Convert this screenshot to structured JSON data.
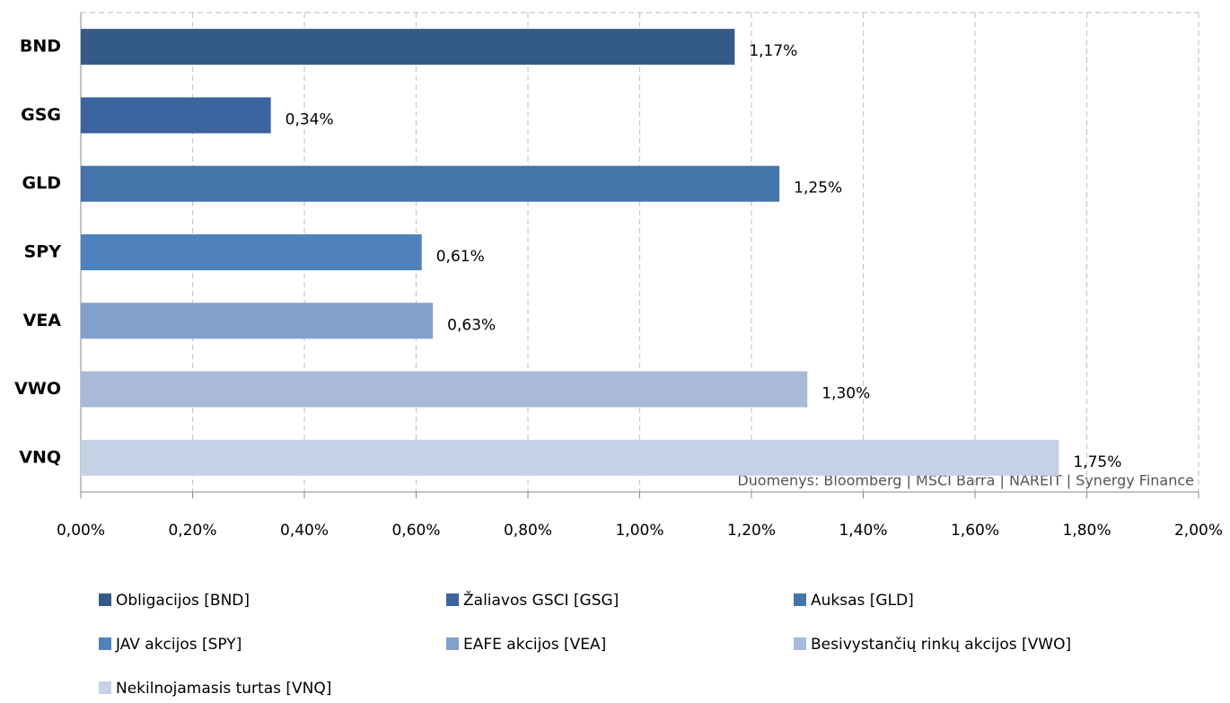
{
  "chart_data": {
    "type": "bar",
    "orientation": "horizontal",
    "categories": [
      "BND",
      "GSG",
      "GLD",
      "SPY",
      "VEA",
      "VWO",
      "VNQ"
    ],
    "values": [
      1.17,
      0.34,
      1.25,
      0.61,
      0.63,
      1.3,
      1.75
    ],
    "value_labels": [
      "1,17%",
      "0,34%",
      "1,25%",
      "0,61%",
      "0,63%",
      "1,30%",
      "1,75%"
    ],
    "colors": [
      "#345b88",
      "#3b639e",
      "#4574ab",
      "#4f81bd",
      "#82a0cc",
      "#a9bad8",
      "#c6d1e5"
    ],
    "legend": [
      "Obligacijos [BND]",
      "Žaliavos GSCI [GSG]",
      "Auksas [GLD]",
      "JAV akcijos [SPY]",
      "EAFE akcijos [VEA]",
      "Besivystančių rinkų akcijos [VWO]",
      "Nekilnojamasis turtas [VNQ]"
    ],
    "xlim": [
      0,
      2
    ],
    "xticks": [
      {
        "value": 0,
        "label": "0,00%"
      },
      {
        "value": 0.2,
        "label": "0,20%"
      },
      {
        "value": 0.4,
        "label": "0,40%"
      },
      {
        "value": 0.6,
        "label": "0,60%"
      },
      {
        "value": 0.8,
        "label": "0,80%"
      },
      {
        "value": 1.0,
        "label": "1,00%"
      },
      {
        "value": 1.2,
        "label": "1,20%"
      },
      {
        "value": 1.4,
        "label": "1,40%"
      },
      {
        "value": 1.6,
        "label": "1,60%"
      },
      {
        "value": 1.8,
        "label": "1,80%"
      },
      {
        "value": 2.0,
        "label": "2,00%"
      }
    ],
    "grid": true,
    "annotation": "Duomenys: Bloomberg | MSCI Barra | NAREIT | Synergy Finance"
  }
}
